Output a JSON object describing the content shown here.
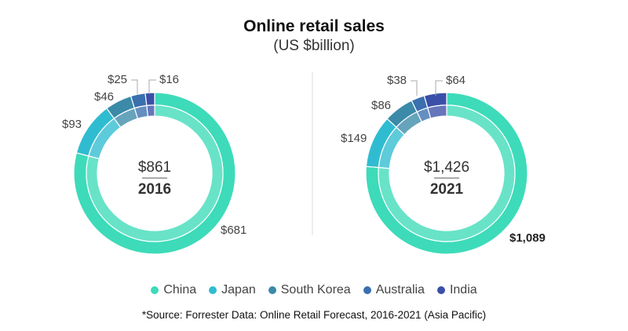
{
  "chart_data": {
    "type": "donut",
    "title": "Online retail sales",
    "subtitle": "(US $billion)",
    "categories": [
      "China",
      "Japan",
      "South Korea",
      "Australia",
      "India"
    ],
    "colors": [
      "#3ddbb9",
      "#30bcd0",
      "#3b8aa8",
      "#3a6fb0",
      "#3a4fa8"
    ],
    "charts": [
      {
        "year": "2016",
        "total_label": "$861",
        "values": [
          681,
          93,
          46,
          25,
          16
        ],
        "value_labels": [
          "$681",
          "$93",
          "$46",
          "$25",
          "$16"
        ]
      },
      {
        "year": "2021",
        "total_label": "$1,426",
        "values": [
          1089,
          149,
          86,
          38,
          64
        ],
        "value_labels": [
          "$1,089",
          "$149",
          "$86",
          "$38",
          "$64"
        ]
      }
    ],
    "legend_position": "bottom",
    "source": "*Source: Forrester Data: Online Retail Forecast, 2016-2021 (Asia Pacific)"
  }
}
